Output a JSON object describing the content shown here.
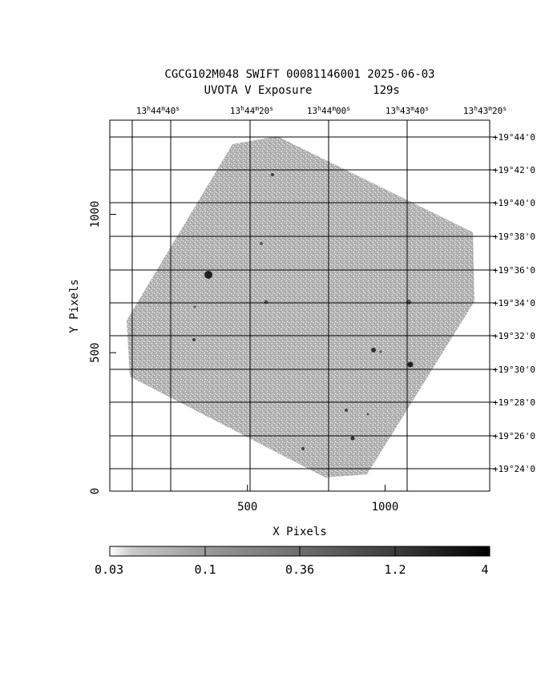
{
  "title": {
    "line1": "CGCG102M048 SWIFT 00081146001 2025-06-03",
    "line2_left": "UVOTA V Exposure",
    "line2_right": "129s"
  },
  "axes": {
    "xlabel": "X Pixels",
    "ylabel": "Y Pixels",
    "x_ticks": [
      {
        "value": 500,
        "label": "500"
      },
      {
        "value": 1000,
        "label": "1000"
      }
    ],
    "y_ticks": [
      {
        "value": 0,
        "label": "0"
      },
      {
        "value": 500,
        "label": "500"
      },
      {
        "value": 1000,
        "label": "1000"
      }
    ],
    "xlim": [
      0,
      1380
    ],
    "ylim": [
      0,
      1340
    ]
  },
  "ra_ticks": [
    {
      "h": "13",
      "m": "44",
      "s": "40"
    },
    {
      "h": "13",
      "m": "44",
      "s": "20"
    },
    {
      "h": "13",
      "m": "44",
      "s": "00"
    },
    {
      "h": "13",
      "m": "43",
      "s": "40"
    },
    {
      "h": "13",
      "m": "43",
      "s": "20"
    }
  ],
  "dec_ticks": [
    "+19°44'0",
    "+19°42'0",
    "+19°40'0",
    "+19°38'0",
    "+19°36'0",
    "+19°34'0",
    "+19°32'0",
    "+19°30'0",
    "+19°28'0",
    "+19°26'0",
    "+19°24'0"
  ],
  "colorbar": {
    "labels": [
      "0.03",
      "0.1",
      "0.36",
      "1.2",
      "4"
    ]
  },
  "colors": {
    "exposure_gray": "#a9a9a9",
    "grid": "#000000"
  }
}
